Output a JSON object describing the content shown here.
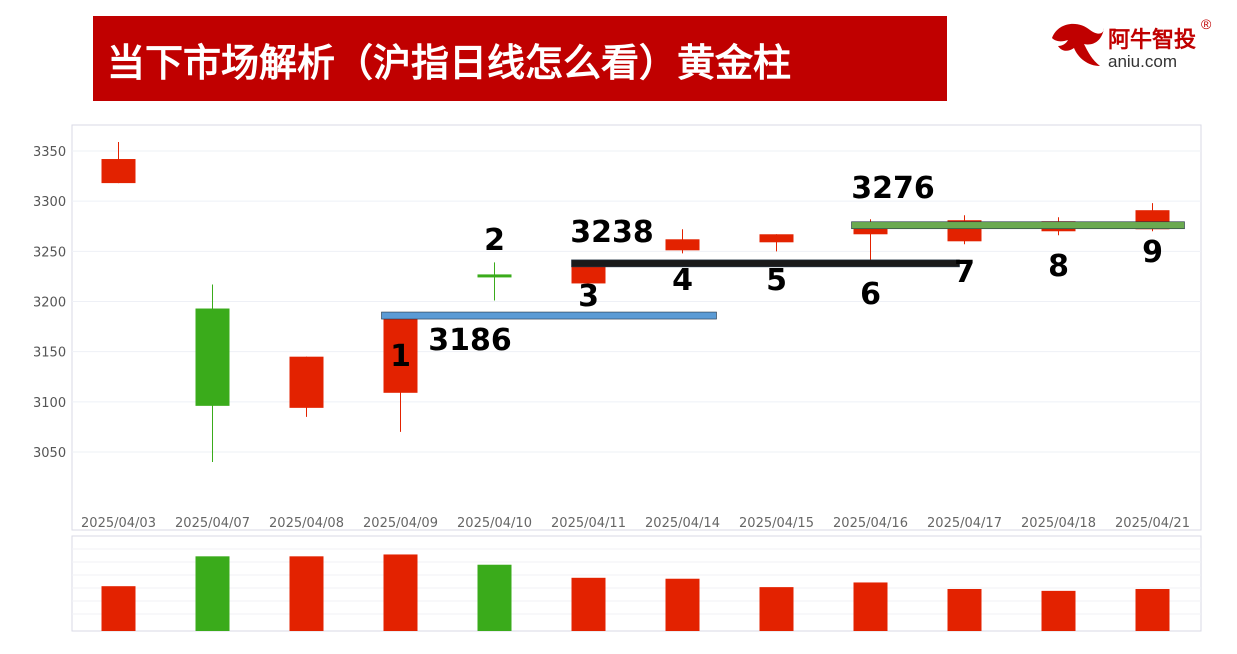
{
  "header": {
    "title": "当下市场解析（沪指日线怎么看）黄金柱"
  },
  "logo": {
    "name_cn": "阿牛智投",
    "domain": "aniu.com",
    "registered": "®"
  },
  "colors": {
    "up": "#e32200",
    "down": "#3aab1b",
    "title_bg": "#c00000",
    "line_3186": "#5b9bd5",
    "line_3238": "#1a1a1a",
    "line_3276": "#6aaa50"
  },
  "chart_data": {
    "type": "candlestick",
    "ylim": [
      3000,
      3370
    ],
    "yticks": [
      3050,
      3100,
      3150,
      3200,
      3250,
      3300,
      3350
    ],
    "categories": [
      "2025/04/03",
      "2025/04/07",
      "2025/04/08",
      "2025/04/09",
      "2025/04/10",
      "2025/04/11",
      "2025/04/14",
      "2025/04/15",
      "2025/04/16",
      "2025/04/17",
      "2025/04/18",
      "2025/04/21"
    ],
    "candles": [
      {
        "date": "2025/04/03",
        "open": 3318,
        "close": 3342,
        "high": 3359,
        "low": 3318,
        "color": "up"
      },
      {
        "date": "2025/04/07",
        "open": 3193,
        "close": 3096,
        "high": 3217,
        "low": 3040,
        "color": "down"
      },
      {
        "date": "2025/04/08",
        "open": 3094,
        "close": 3145,
        "high": 3145,
        "low": 3085,
        "color": "up"
      },
      {
        "date": "2025/04/09",
        "open": 3109,
        "close": 3186,
        "high": 3186,
        "low": 3070,
        "color": "up"
      },
      {
        "date": "2025/04/10",
        "open": 3227,
        "close": 3224,
        "high": 3239,
        "low": 3201,
        "color": "down"
      },
      {
        "date": "2025/04/11",
        "open": 3218,
        "close": 3238,
        "high": 3240,
        "low": 3218,
        "color": "up"
      },
      {
        "date": "2025/04/14",
        "open": 3251,
        "close": 3262,
        "high": 3272,
        "low": 3248,
        "color": "up"
      },
      {
        "date": "2025/04/15",
        "open": 3259,
        "close": 3267,
        "high": 3267,
        "low": 3250,
        "color": "up"
      },
      {
        "date": "2025/04/16",
        "open": 3267,
        "close": 3276,
        "high": 3282,
        "low": 3236,
        "color": "up"
      },
      {
        "date": "2025/04/17",
        "open": 3260,
        "close": 3281,
        "high": 3286,
        "low": 3257,
        "color": "up"
      },
      {
        "date": "2025/04/18",
        "open": 3270,
        "close": 3280,
        "high": 3284,
        "low": 3266,
        "color": "up"
      },
      {
        "date": "2025/04/21",
        "open": 3272,
        "close": 3291,
        "high": 3298,
        "low": 3270,
        "color": "up"
      }
    ],
    "volume": [
      0.48,
      0.8,
      0.8,
      0.82,
      0.71,
      0.57,
      0.56,
      0.47,
      0.52,
      0.45,
      0.43,
      0.45
    ],
    "candle_labels": [
      {
        "label": "1",
        "date": "2025/04/09"
      },
      {
        "label": "2",
        "date": "2025/04/10"
      },
      {
        "label": "3",
        "date": "2025/04/11"
      },
      {
        "label": "4",
        "date": "2025/04/14"
      },
      {
        "label": "5",
        "date": "2025/04/15"
      },
      {
        "label": "6",
        "date": "2025/04/16"
      },
      {
        "label": "7",
        "date": "2025/04/17"
      },
      {
        "label": "8",
        "date": "2025/04/18"
      },
      {
        "label": "9",
        "date": "2025/04/21"
      }
    ],
    "support_lines": [
      {
        "label": "3186",
        "value": 3186,
        "from": "2025/04/09",
        "to": "2025/04/14",
        "color": "line_3186"
      },
      {
        "label": "3238",
        "value": 3238,
        "from": "2025/04/11",
        "to": "2025/04/17",
        "color": "line_3238"
      },
      {
        "label": "3276",
        "value": 3276,
        "from": "2025/04/16",
        "to": "2025/04/21",
        "color": "line_3276"
      }
    ]
  }
}
